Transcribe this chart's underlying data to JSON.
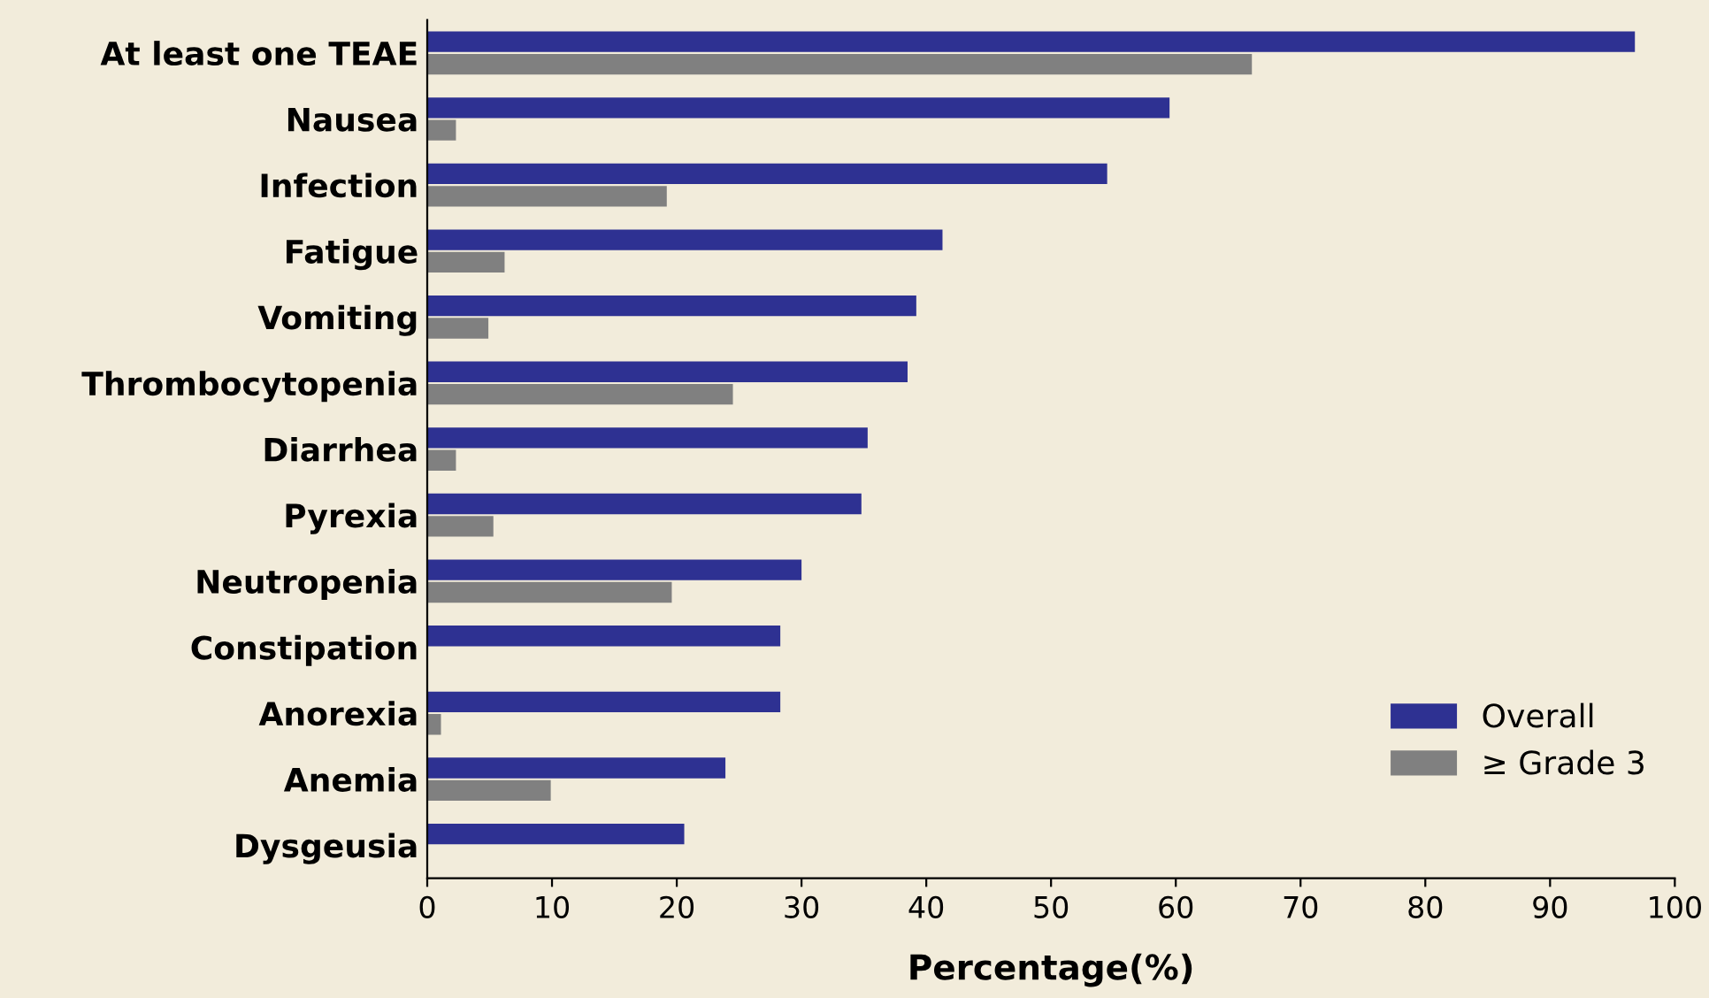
{
  "chart_data": {
    "type": "bar",
    "orientation": "horizontal",
    "xlabel": "Percentage(%)",
    "categories": [
      "At least one TEAE",
      "Nausea",
      "Infection",
      "Fatigue",
      "Vomiting",
      "Thrombocytopenia",
      "Diarrhea",
      "Pyrexia",
      "Neutropenia",
      "Constipation",
      "Anorexia",
      "Anemia",
      "Dysgeusia"
    ],
    "series": [
      {
        "name": "Overall",
        "color": "#2e3192",
        "values": [
          96.8,
          59.5,
          54.5,
          41.3,
          39.2,
          38.5,
          35.3,
          34.8,
          30.0,
          28.3,
          28.3,
          23.9,
          20.6
        ]
      },
      {
        "name": "≥ Grade 3",
        "color": "#808080",
        "values": [
          66.1,
          2.3,
          19.2,
          6.2,
          4.9,
          24.5,
          2.3,
          5.3,
          19.6,
          null,
          1.1,
          9.9,
          null
        ]
      }
    ],
    "xlim": [
      0,
      100
    ],
    "xticks": [
      0,
      10,
      20,
      30,
      40,
      50,
      60,
      70,
      80,
      90,
      100
    ],
    "grid": false,
    "legend": "bottom right"
  }
}
